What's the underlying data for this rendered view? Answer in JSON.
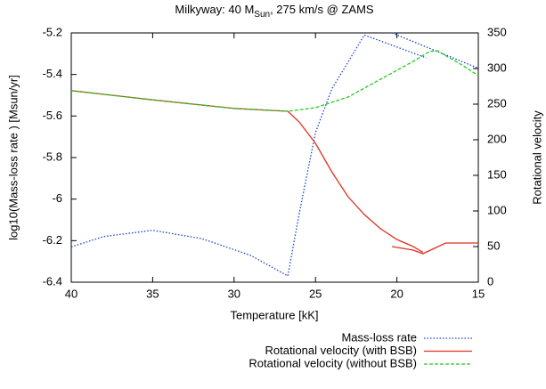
{
  "chart_data": {
    "type": "line",
    "title": {
      "before": "Milkyway: 40 M",
      "subscript": "Sun",
      "after": ", 275 km/s @ ZAMS"
    },
    "xlabel": "Temperature [kK]",
    "ylabel": "log10(Mass-loss rate ) [Msun/yr]",
    "y2label": "Rotational velocity",
    "xlim": [
      40,
      15
    ],
    "xticks": [
      40,
      35,
      30,
      25,
      20,
      15
    ],
    "ylim": [
      -6.4,
      -5.2
    ],
    "yticks": [
      -6.4,
      -6.2,
      -6,
      -5.8,
      -5.6,
      -5.4,
      -5.2
    ],
    "y2lim": [
      0,
      350
    ],
    "y2ticks": [
      0,
      50,
      100,
      150,
      200,
      250,
      300,
      350
    ],
    "series": [
      {
        "name": "Mass-loss rate",
        "color": "#1a3fd6",
        "dash": "dotted",
        "axis": "y",
        "x": [
          40,
          38,
          35,
          32,
          29,
          26.7,
          26,
          25,
          24,
          23,
          22,
          18.2,
          null,
          20.3,
          15
        ],
        "values": [
          -6.23,
          -6.18,
          -6.15,
          -6.19,
          -6.27,
          -6.37,
          -6.07,
          -5.68,
          -5.47,
          -5.34,
          -5.21,
          -5.32,
          null,
          -5.2,
          -5.37
        ]
      },
      {
        "name": "Rotational velocity (with BSB)",
        "color": "#e0301e",
        "dash": "solid",
        "axis": "y2",
        "x": [
          40,
          35,
          30,
          26.7,
          26,
          25,
          24,
          23,
          22,
          21,
          20,
          19,
          18.4,
          null,
          20.3,
          19,
          18.4,
          17,
          16,
          15
        ],
        "values": [
          269,
          256,
          244,
          240,
          225,
          195,
          155,
          120,
          95,
          75,
          60,
          50,
          42,
          null,
          50,
          45,
          40,
          55,
          55,
          55
        ]
      },
      {
        "name": "Rotational velocity (without BSB)",
        "color": "#22cc22",
        "dash": "dashed",
        "axis": "y2",
        "x": [
          40,
          35,
          30,
          26.7,
          25,
          23,
          21,
          19,
          18,
          17.5,
          17,
          16,
          15
        ],
        "values": [
          269,
          256,
          244,
          240,
          245,
          260,
          285,
          310,
          324,
          325,
          318,
          305,
          290
        ]
      }
    ]
  }
}
